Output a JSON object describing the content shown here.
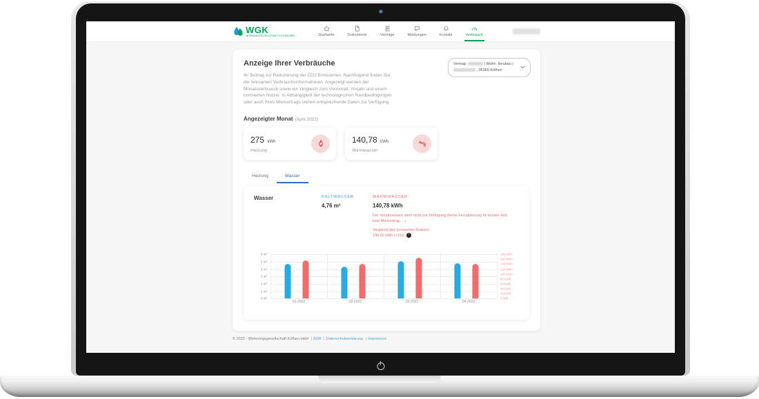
{
  "nav": {
    "logo_text": "WGK",
    "logo_subtitle": "WOHNUNGSGESELLSCHAFT KÖTHEN MBH",
    "items": [
      {
        "label": "Startseite",
        "icon": "home-icon"
      },
      {
        "label": "Dokumente",
        "icon": "document-icon"
      },
      {
        "label": "Verträge",
        "icon": "contract-icon"
      },
      {
        "label": "Meldungen",
        "icon": "chat-bubble-icon"
      },
      {
        "label": "Kontakt",
        "icon": "bell-icon"
      },
      {
        "label": "Verbrauch",
        "icon": "gauge-icon"
      }
    ],
    "active_item": "Verbrauch"
  },
  "header": {
    "title": "Anzeige Ihrer Verbräuche",
    "intro": "Ihr Beitrag zur Reduzierung der CO2 Emissionen. Nachfolgend finden Sie die relevanten Verbrauchsinformationen. Angezeigt werden der Monatsverbrauch sowie ein Vergleich zum Vormonat, Vorjahr und einem normierten Nutzer. In Abhängigkeit der technologischen Randbedingungen oder auch Ihres Mietvertrags stehen entsprechende Daten zur Verfügung.",
    "contract": {
      "prefix": "Vertrag:",
      "line1_suffix": "| Wohn. Neubau |",
      "line2_suffix": ", 06366 Köthen"
    }
  },
  "month": {
    "heading": "Angezeigter Monat",
    "sub": "(April 2022)",
    "cards": [
      {
        "value": "275",
        "unit": "kWh",
        "label": "Heizung",
        "icon": "flame-icon"
      },
      {
        "value": "140,78",
        "unit": "kWh",
        "label": "Warmwasser",
        "icon": "faucet-icon"
      }
    ]
  },
  "tabs": [
    {
      "label": "Heizung",
      "active": false
    },
    {
      "label": "Wasser",
      "active": true
    }
  ],
  "panel": {
    "title": "Wasser",
    "cold_label": "KALTWASSER",
    "cold_value": "4,76 m³",
    "warm_label": "WARMWASSER",
    "warm_value": "140,78 kWh",
    "warm_note": "Der Vorjahreswert steht nicht zur Verfügung (keine Fernablesung im letzten Jahr, kein Mietvertrag, ...)",
    "comparison_label": "Vergleich des normierten Nutzers:",
    "comparison_value": "140,02 kWh (+1%)"
  },
  "chart_data": {
    "type": "bar",
    "categories": [
      "01-2022",
      "02-2022",
      "03-2022",
      "04-2022"
    ],
    "series": [
      {
        "name": "Kaltwasser",
        "unit": "m³",
        "axis": "left",
        "color": "#29abe2",
        "values": [
          4.7,
          4.35,
          5.1,
          4.76
        ]
      },
      {
        "name": "Warmwasser",
        "unit": "kWh",
        "axis": "right",
        "color": "#f16d6d",
        "values": [
          155,
          141,
          166,
          140.78
        ]
      }
    ],
    "left_axis": {
      "max": 6,
      "ticks": [
        "6 m³",
        "5 m³",
        "4 m³",
        "3 m³",
        "2 m³",
        "1 m³",
        "0 m³"
      ]
    },
    "right_axis": {
      "max": 180,
      "ticks": [
        "180 kWh",
        "160 kWh",
        "140 kWh",
        "120 kWh",
        "100 kWh",
        "80 kWh",
        "60 kWh",
        "40 kWh",
        "20 kWh",
        "0 kWh"
      ]
    },
    "grid": true,
    "legend": "none"
  },
  "footer": {
    "copyright": "© 2022 - Wohnungsgesellschaft Köthen mbH",
    "links": [
      "AGB",
      "Datenschutzerklärung",
      "Impressum"
    ]
  },
  "colors": {
    "brand_green": "#00a553",
    "cold_blue": "#29abe2",
    "warm_red": "#f16d6d",
    "tab_blue": "#2e6fc0"
  }
}
